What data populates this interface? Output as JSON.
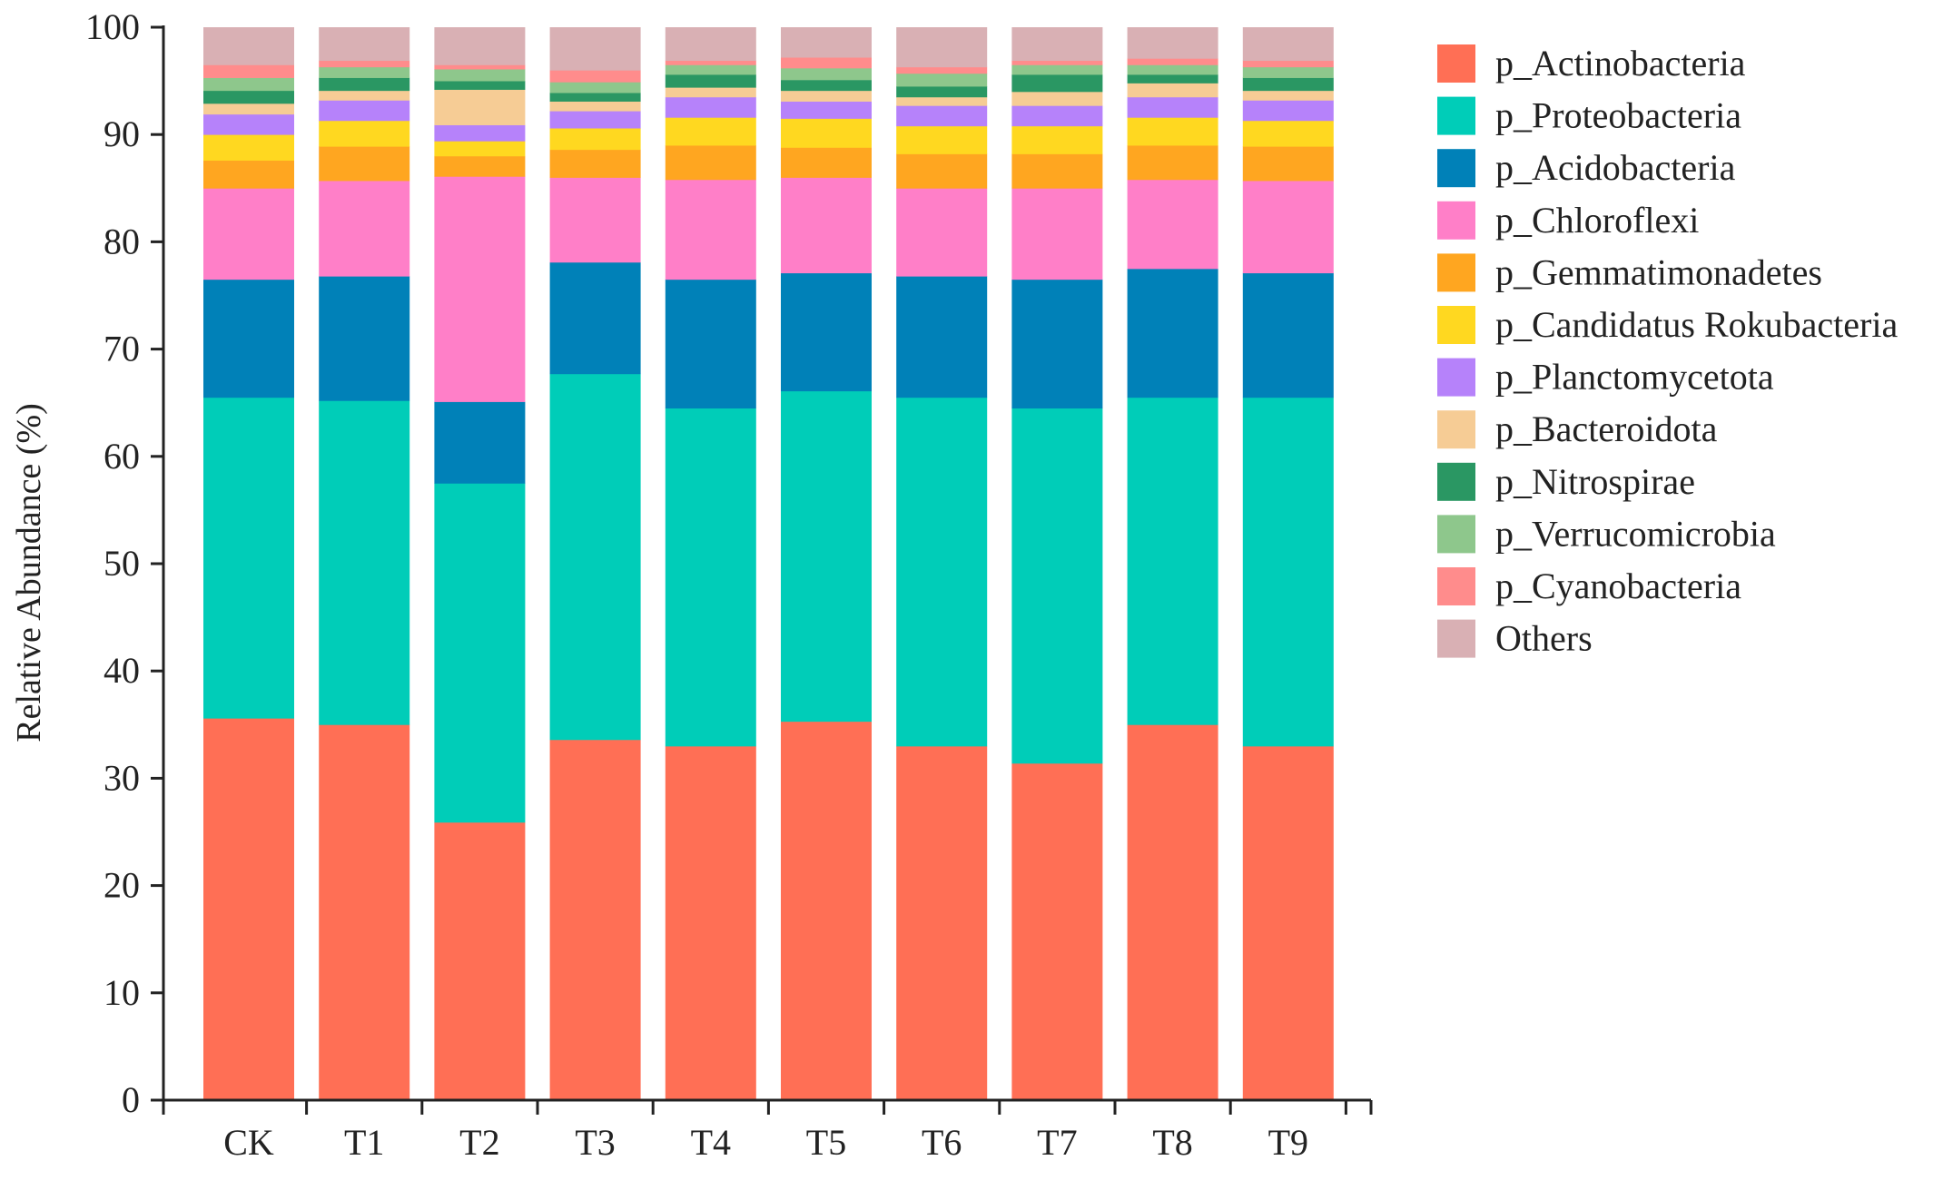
{
  "chart_data": {
    "type": "bar",
    "stacked": true,
    "title": "",
    "xlabel": "",
    "ylabel": "Relative Abundance (%)",
    "ylim": [
      0,
      100
    ],
    "yticks": [
      0,
      10,
      20,
      30,
      40,
      50,
      60,
      70,
      80,
      90,
      100
    ],
    "categories": [
      "CK",
      "T1",
      "T2",
      "T3",
      "T4",
      "T5",
      "T6",
      "T7",
      "T8",
      "T9"
    ],
    "legend_position": "right",
    "series": [
      {
        "name": "p_Actinobacteria",
        "color": "#FF6F55",
        "values": [
          35.6,
          35.0,
          25.9,
          33.6,
          33.0,
          35.3,
          33.0,
          31.4,
          35.0,
          33.0
        ]
      },
      {
        "name": "p_Proteobacteria",
        "color": "#00CDB8",
        "values": [
          29.9,
          30.2,
          31.6,
          34.1,
          31.5,
          30.8,
          32.5,
          33.1,
          30.5,
          32.5
        ]
      },
      {
        "name": "p_Acidobacteria",
        "color": "#0081B8",
        "values": [
          11.0,
          11.6,
          7.6,
          10.4,
          12.0,
          11.0,
          11.3,
          12.0,
          12.0,
          11.6
        ]
      },
      {
        "name": "p_Chloroflexi",
        "color": "#FF7FC8",
        "values": [
          8.5,
          8.9,
          21.0,
          7.9,
          9.3,
          8.9,
          8.2,
          8.5,
          8.3,
          8.6
        ]
      },
      {
        "name": "p_Gemmatimonadetes",
        "color": "#FFA620",
        "values": [
          2.6,
          3.2,
          1.9,
          2.6,
          3.2,
          2.8,
          3.2,
          3.2,
          3.2,
          3.2
        ]
      },
      {
        "name": "p_Candidatus Rokubacteria",
        "color": "#FFD820",
        "values": [
          2.4,
          2.4,
          1.4,
          2.0,
          2.6,
          2.7,
          2.6,
          2.6,
          2.6,
          2.4
        ]
      },
      {
        "name": "p_Planctomycetota",
        "color": "#B682FA",
        "values": [
          1.9,
          1.9,
          1.5,
          1.6,
          1.9,
          1.6,
          1.9,
          1.9,
          1.9,
          1.9
        ]
      },
      {
        "name": "p_Bacteroidota",
        "color": "#F6CC95",
        "values": [
          1.0,
          0.9,
          3.3,
          0.9,
          0.9,
          1.0,
          0.8,
          1.3,
          1.3,
          0.9
        ]
      },
      {
        "name": "p_Nitrospirae",
        "color": "#2A9763",
        "values": [
          1.2,
          1.2,
          0.8,
          0.8,
          1.2,
          1.0,
          1.0,
          1.6,
          0.8,
          1.2
        ]
      },
      {
        "name": "p_Verrucomicrobia",
        "color": "#8EC78C",
        "values": [
          1.2,
          1.0,
          1.1,
          1.0,
          0.9,
          1.1,
          1.2,
          0.9,
          0.9,
          1.0
        ]
      },
      {
        "name": "p_Cyanobacteria",
        "color": "#FF8C8C",
        "values": [
          1.2,
          0.6,
          0.4,
          1.1,
          0.4,
          1.0,
          0.6,
          0.4,
          0.6,
          0.6
        ]
      },
      {
        "name": "Others",
        "color": "#D9B0B4",
        "values": [
          3.5,
          3.1,
          3.5,
          4.0,
          3.1,
          2.8,
          3.7,
          3.1,
          2.9,
          3.1
        ]
      }
    ]
  }
}
